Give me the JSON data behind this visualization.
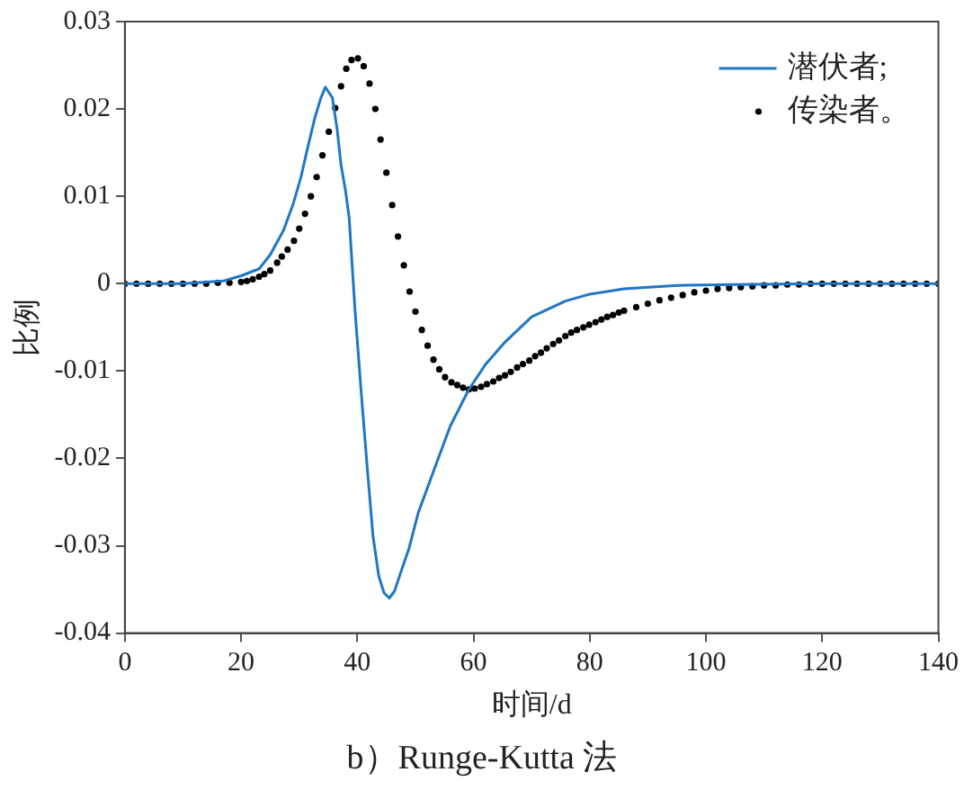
{
  "chart_data": {
    "type": "line",
    "title": "b）Runge-Kutta 法",
    "xlabel": "时间/d",
    "ylabel": "比例",
    "xlim": [
      0,
      140
    ],
    "xticks": [
      0,
      20,
      40,
      60,
      80,
      100,
      120,
      140
    ],
    "ylim": [
      -0.04,
      0.03
    ],
    "yticks": [
      -0.04,
      -0.03,
      -0.02,
      -0.01,
      0,
      0.01,
      0.02,
      0.03
    ],
    "grid": false,
    "legend": "top right",
    "series": [
      {
        "name": "潜伏者;",
        "color": "#1f77c4",
        "marker": "none",
        "x": [
          0,
          10,
          16.9,
          20,
          23.1,
          25,
          27.3,
          29,
          30.3,
          31.5,
          32.7,
          33.7,
          34.5,
          35.7,
          36.5,
          37.2,
          38,
          38.6,
          39.6,
          40.7,
          41.7,
          42.7,
          43.7,
          44.6,
          45.5,
          46.4,
          47.5,
          48.9,
          50.5,
          53.1,
          56,
          59.2,
          62,
          65.4,
          70,
          75.8,
          80,
          85.9,
          95,
          105,
          120,
          140
        ],
        "values": [
          0,
          0,
          0.0003,
          0.0009,
          0.0017,
          0.0033,
          0.0061,
          0.0092,
          0.0122,
          0.0157,
          0.019,
          0.0212,
          0.0225,
          0.0213,
          0.0178,
          0.0136,
          0.0105,
          0.0075,
          -0.003,
          -0.0127,
          -0.021,
          -0.0289,
          -0.0335,
          -0.0354,
          -0.036,
          -0.0352,
          -0.033,
          -0.0303,
          -0.0262,
          -0.0215,
          -0.0163,
          -0.0121,
          -0.0093,
          -0.0067,
          -0.0038,
          -0.002,
          -0.0012,
          -0.0006,
          -0.0002,
          -0.0001,
          0,
          0
        ]
      },
      {
        "name": "传染者。",
        "type": "scatter",
        "color": "#000000",
        "marker": "circle",
        "x": [
          0,
          2,
          4,
          6,
          8,
          10,
          12,
          14,
          16,
          18,
          20,
          21,
          22,
          23.1,
          24,
          25,
          26.2,
          27,
          28,
          29.1,
          30,
          31,
          32,
          33,
          34,
          35.1,
          36.2,
          37.2,
          38.1,
          39,
          40.1,
          41.1,
          42.1,
          43.1,
          44,
          45,
          46,
          47,
          48,
          49,
          50,
          51.1,
          52.1,
          53.1,
          54.1,
          55.1,
          56.2,
          57.2,
          58.2,
          59.2,
          60.2,
          61.3,
          62.3,
          63.4,
          64.4,
          65.4,
          66.4,
          67.5,
          68.5,
          69.6,
          70.6,
          71.6,
          72.6,
          73.7,
          74.7,
          75.8,
          76.8,
          77.8,
          78.9,
          79.9,
          81,
          82,
          83,
          84,
          85,
          85.9,
          88,
          90,
          92,
          94,
          96,
          98,
          100,
          102,
          104,
          106,
          108,
          110,
          112,
          114,
          116,
          118,
          120,
          122,
          124,
          126,
          128,
          130,
          132,
          134,
          136,
          138,
          140
        ],
        "values": [
          0,
          0,
          0,
          0,
          0,
          0,
          0,
          0,
          0.0001,
          0.0001,
          0.0002,
          0.0003,
          0.0005,
          0.0008,
          0.0011,
          0.0015,
          0.0024,
          0.0031,
          0.0039,
          0.0049,
          0.0063,
          0.008,
          0.01,
          0.0122,
          0.0147,
          0.0174,
          0.0201,
          0.0226,
          0.0246,
          0.0256,
          0.0258,
          0.0249,
          0.0229,
          0.02,
          0.0165,
          0.0127,
          0.009,
          0.0054,
          0.0021,
          -0.0009,
          -0.0032,
          -0.0053,
          -0.0071,
          -0.0087,
          -0.0098,
          -0.0107,
          -0.0113,
          -0.0116,
          -0.0119,
          -0.0121,
          -0.012,
          -0.0118,
          -0.0115,
          -0.0112,
          -0.0108,
          -0.0105,
          -0.0101,
          -0.0096,
          -0.0092,
          -0.0088,
          -0.0083,
          -0.0079,
          -0.0074,
          -0.0069,
          -0.0065,
          -0.006,
          -0.0056,
          -0.0053,
          -0.005,
          -0.0047,
          -0.0044,
          -0.0041,
          -0.0038,
          -0.0036,
          -0.0033,
          -0.0031,
          -0.0027,
          -0.0023,
          -0.0019,
          -0.0016,
          -0.0013,
          -0.001,
          -0.0008,
          -0.0006,
          -0.0005,
          -0.0004,
          -0.0003,
          -0.0002,
          -0.0002,
          -0.0001,
          -0.0001,
          0,
          0,
          0,
          0,
          0,
          0,
          0,
          0,
          0,
          0,
          0,
          0
        ]
      }
    ]
  }
}
